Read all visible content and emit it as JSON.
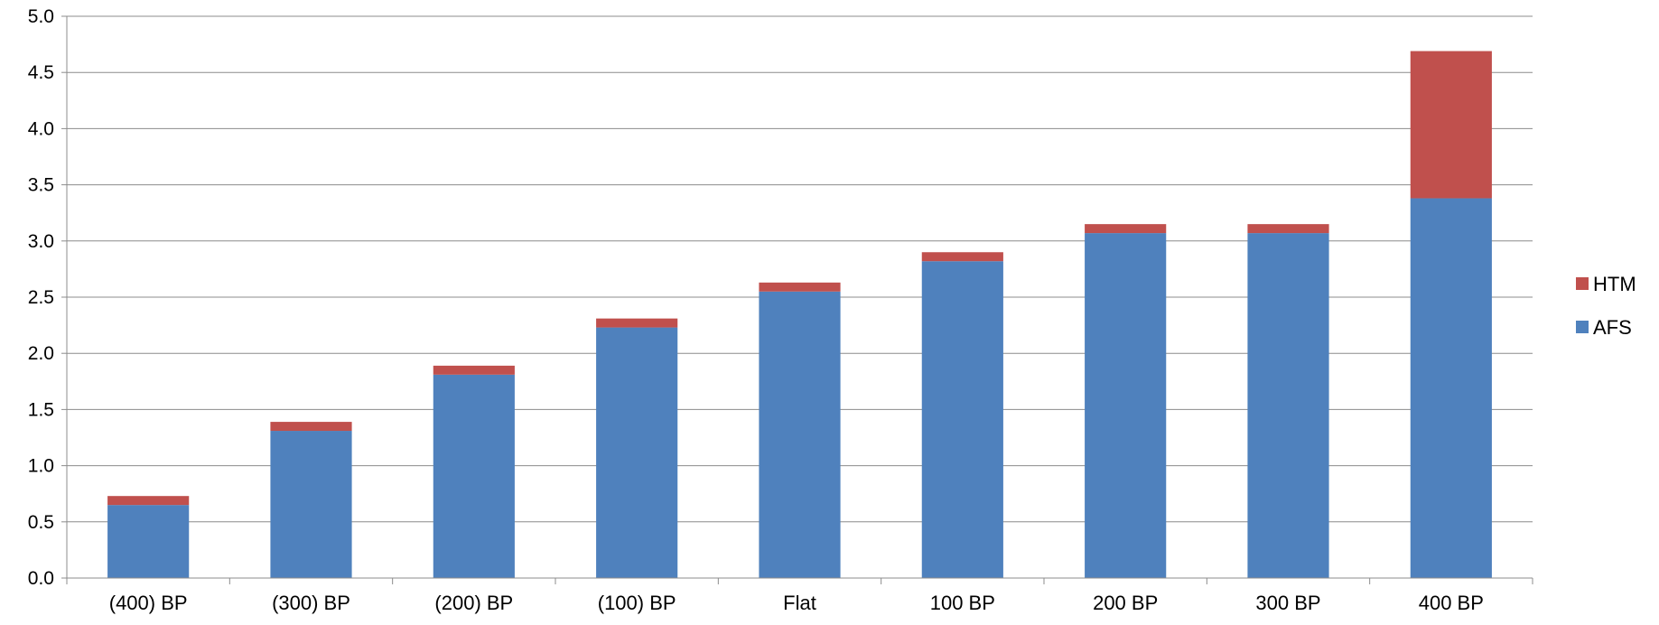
{
  "chart_data": {
    "type": "bar",
    "stacked": true,
    "categories": [
      "(400) BP",
      "(300) BP",
      "(200) BP",
      "(100) BP",
      "Flat",
      "100 BP",
      "200 BP",
      "300 BP",
      "400 BP"
    ],
    "series": [
      {
        "name": "AFS",
        "color": "#4F81BD",
        "values": [
          0.65,
          1.31,
          1.81,
          2.23,
          2.55,
          2.82,
          3.07,
          3.07,
          3.38
        ]
      },
      {
        "name": "HTM",
        "color": "#C0504D",
        "values": [
          0.08,
          0.08,
          0.08,
          0.08,
          0.08,
          0.08,
          0.08,
          0.08,
          1.31
        ]
      }
    ],
    "ylim": [
      0,
      5
    ],
    "yticks": [
      "0.0",
      "0.5",
      "1.0",
      "1.5",
      "2.0",
      "2.5",
      "3.0",
      "3.5",
      "4.0",
      "4.5",
      "5.0"
    ],
    "grid": true,
    "legend_position": "right",
    "legend": [
      {
        "name": "HTM",
        "color": "#C0504D"
      },
      {
        "name": "AFS",
        "color": "#4F81BD"
      }
    ]
  }
}
